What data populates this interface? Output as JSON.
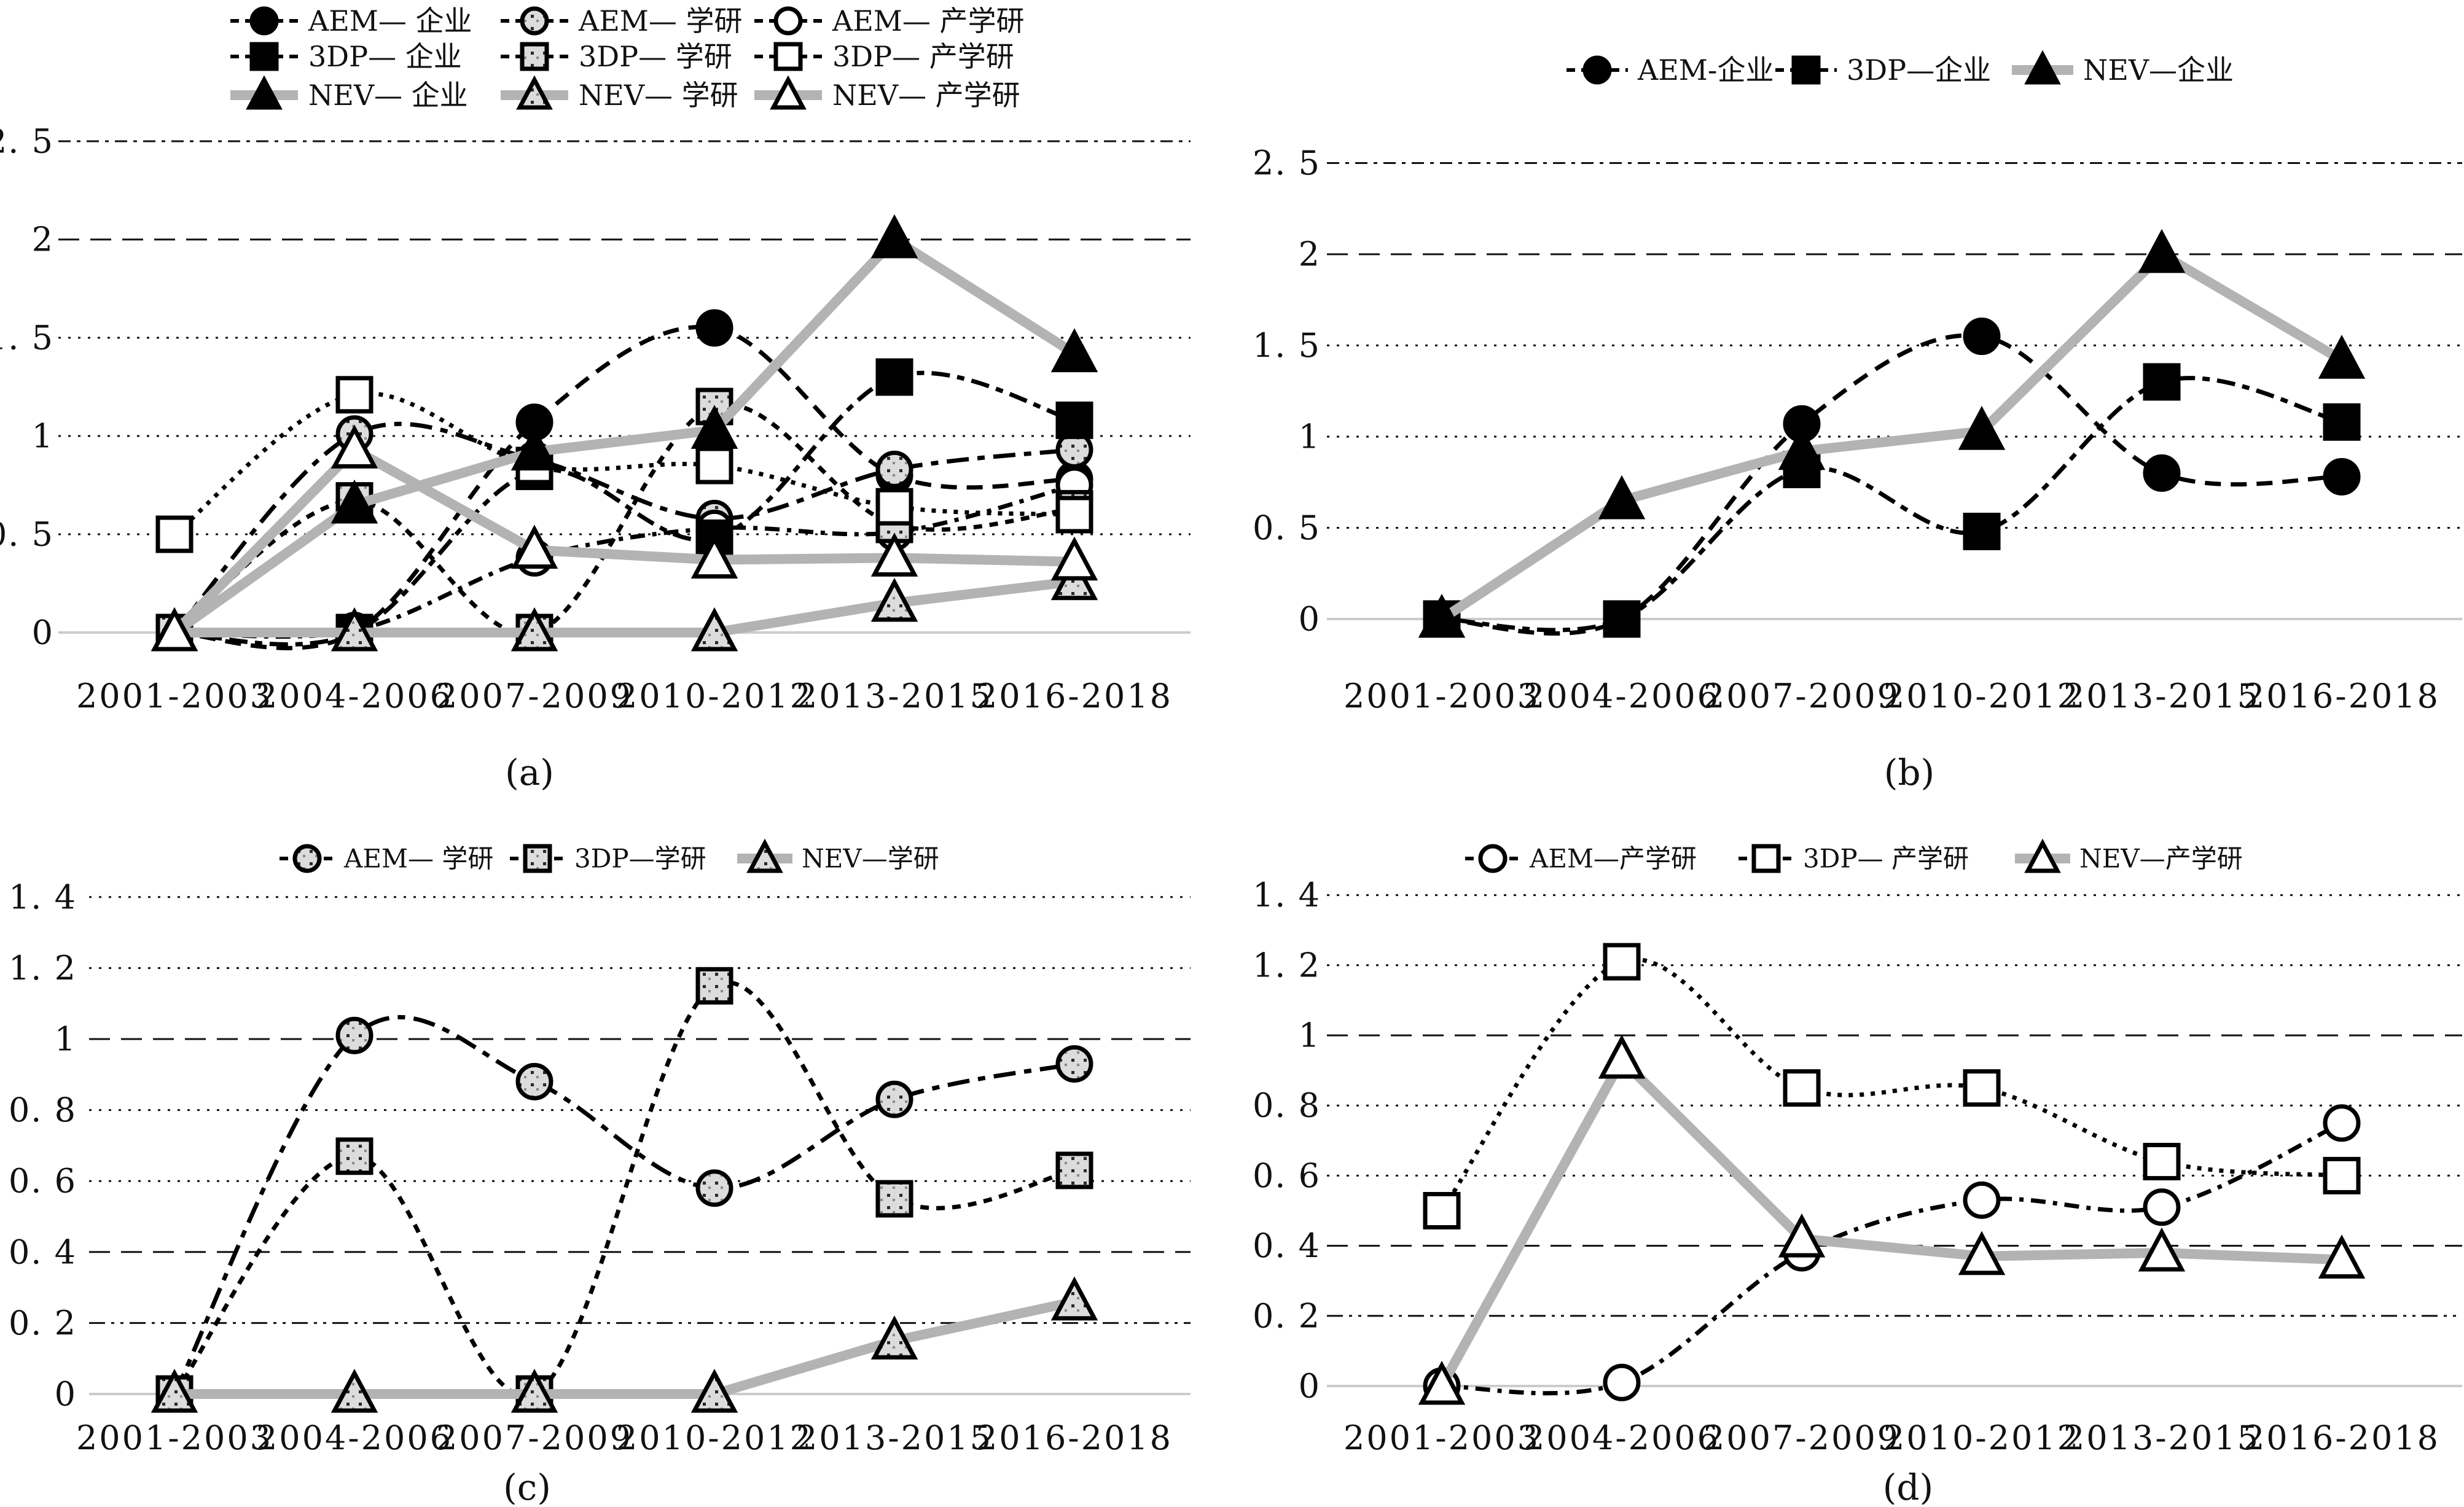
{
  "figure": {
    "background": "#ffffff",
    "captions": {
      "a": "(a)",
      "b": "(b)",
      "c": "(c)",
      "d": "(d)"
    }
  },
  "chart_data": {
    "type": "line",
    "categories": [
      "2001-2003",
      "2004-2006",
      "2007-2009",
      "2010-2012",
      "2013-2015",
      "2016-2018"
    ],
    "colors": {
      "dashed_line": "#000000",
      "nev_thick_line": "#b3b3b3",
      "gray_marker_fill": "#dcdcdc",
      "white_marker_fill": "#ffffff",
      "black_marker_fill": "#000000",
      "zero_axis_line": "#cccccc",
      "grid_line": "#111111"
    },
    "series": [
      {
        "key": "aem_qy",
        "name": "AEM— 企业",
        "marker": "circle",
        "fill": "black",
        "line": "dashed",
        "dash": "26 16",
        "values": [
          0,
          0,
          1.07,
          1.55,
          0.8,
          0.78
        ]
      },
      {
        "key": "aem_xy",
        "name": "AEM— 学研",
        "marker": "circle",
        "fill": "gray",
        "line": "dashed",
        "dash": "36 14 12 14",
        "values": [
          0,
          1.01,
          0.88,
          0.58,
          0.83,
          0.93
        ]
      },
      {
        "key": "aem_cxy",
        "name": "AEM— 产学研",
        "marker": "circle",
        "fill": "white",
        "line": "dashed",
        "dash": "24 12 7 12",
        "values": [
          0,
          0.01,
          0.38,
          0.53,
          0.51,
          0.75
        ]
      },
      {
        "key": "dp_qy",
        "name": "3DP— 企业",
        "marker": "square",
        "fill": "black",
        "line": "dashed",
        "dash": "12 12 30 12",
        "values": [
          0,
          0,
          0.82,
          0.48,
          1.3,
          1.08
        ]
      },
      {
        "key": "dp_xy",
        "name": "3DP— 学研",
        "marker": "square",
        "fill": "gray",
        "line": "dashed",
        "dash": "14 12",
        "values": [
          0,
          0.67,
          0,
          1.15,
          0.55,
          0.63
        ]
      },
      {
        "key": "dp_cxy",
        "name": "3DP— 产学研",
        "marker": "square",
        "fill": "white",
        "line": "dashed",
        "dash": "7 11",
        "values": [
          0.5,
          1.21,
          0.85,
          0.85,
          0.64,
          0.6
        ]
      },
      {
        "key": "nev_qy",
        "name": "NEV— 企业",
        "marker": "triangle",
        "fill": "black",
        "line": "thick-gray",
        "dash": "",
        "values": [
          0,
          0.65,
          0.92,
          1.03,
          2.0,
          1.42
        ]
      },
      {
        "key": "nev_xy",
        "name": "NEV— 学研",
        "marker": "triangle",
        "fill": "gray",
        "line": "thick-gray",
        "dash": "",
        "values": [
          0,
          0,
          0,
          0,
          0.15,
          0.26
        ]
      },
      {
        "key": "nev_cxy",
        "name": "NEV— 产学研",
        "marker": "triangle",
        "fill": "white",
        "line": "thick-gray",
        "dash": "",
        "values": [
          0,
          0.93,
          0.42,
          0.37,
          0.38,
          0.36
        ]
      }
    ],
    "panels": [
      {
        "id": "a",
        "caption": "(a)",
        "ylim": [
          0,
          2.5
        ],
        "ytick_values": [
          0,
          0.5,
          1,
          1.5,
          2,
          2.5
        ],
        "ytick_labels": [
          "0",
          "0. 5",
          "1",
          "1. 5",
          "2",
          "2. 5"
        ],
        "series_keys": [
          "aem_qy",
          "aem_xy",
          "aem_cxy",
          "dp_qy",
          "dp_xy",
          "dp_cxy",
          "nev_qy",
          "nev_xy",
          "nev_cxy"
        ],
        "legend_labels": [
          "AEM— 企业",
          "AEM— 学研",
          "AEM— 产学研",
          "3DP— 企业",
          "3DP— 学研",
          "3DP— 产学研",
          "NEV— 企业",
          "NEV— 学研",
          "NEV— 产学研"
        ],
        "legend_series": [
          "aem_qy",
          "aem_xy",
          "aem_cxy",
          "dp_qy",
          "dp_xy",
          "dp_cxy",
          "nev_qy",
          "nev_xy",
          "nev_cxy"
        ]
      },
      {
        "id": "b",
        "caption": "(b)",
        "ylim": [
          0,
          2.5
        ],
        "ytick_values": [
          0,
          0.5,
          1,
          1.5,
          2,
          2.5
        ],
        "ytick_labels": [
          "0",
          "0. 5",
          "1",
          "1. 5",
          "2",
          "2. 5"
        ],
        "series_keys": [
          "aem_qy",
          "dp_qy",
          "nev_qy"
        ],
        "legend_labels": [
          "AEM-企业",
          "3DP—企业",
          "NEV—企业"
        ],
        "legend_series": [
          "aem_qy",
          "dp_qy",
          "nev_qy"
        ]
      },
      {
        "id": "c",
        "caption": "(c)",
        "ylim": [
          0,
          1.4
        ],
        "ytick_values": [
          0,
          0.2,
          0.4,
          0.6,
          0.8,
          1,
          1.2,
          1.4
        ],
        "ytick_labels": [
          "0",
          "0. 2",
          "0. 4",
          "0. 6",
          "0. 8",
          "1",
          "1. 2",
          "1. 4"
        ],
        "series_keys": [
          "aem_xy",
          "dp_xy",
          "nev_xy"
        ],
        "legend_labels": [
          "AEM— 学研",
          "3DP—学研",
          "NEV—学研"
        ],
        "legend_series": [
          "aem_xy",
          "dp_xy",
          "nev_xy"
        ]
      },
      {
        "id": "d",
        "caption": "(d)",
        "ylim": [
          0,
          1.4
        ],
        "ytick_values": [
          0,
          0.2,
          0.4,
          0.6,
          0.8,
          1,
          1.2,
          1.4
        ],
        "ytick_labels": [
          "0",
          "0. 2",
          "0. 4",
          "0. 6",
          "0. 8",
          "1",
          "1. 2",
          "1. 4"
        ],
        "series_keys": [
          "aem_cxy",
          "dp_cxy",
          "nev_cxy"
        ],
        "legend_labels": [
          "AEM—产学研",
          "3DP— 产学研",
          "NEV—产学研"
        ],
        "legend_series": [
          "aem_cxy",
          "dp_cxy",
          "nev_cxy"
        ]
      }
    ]
  }
}
